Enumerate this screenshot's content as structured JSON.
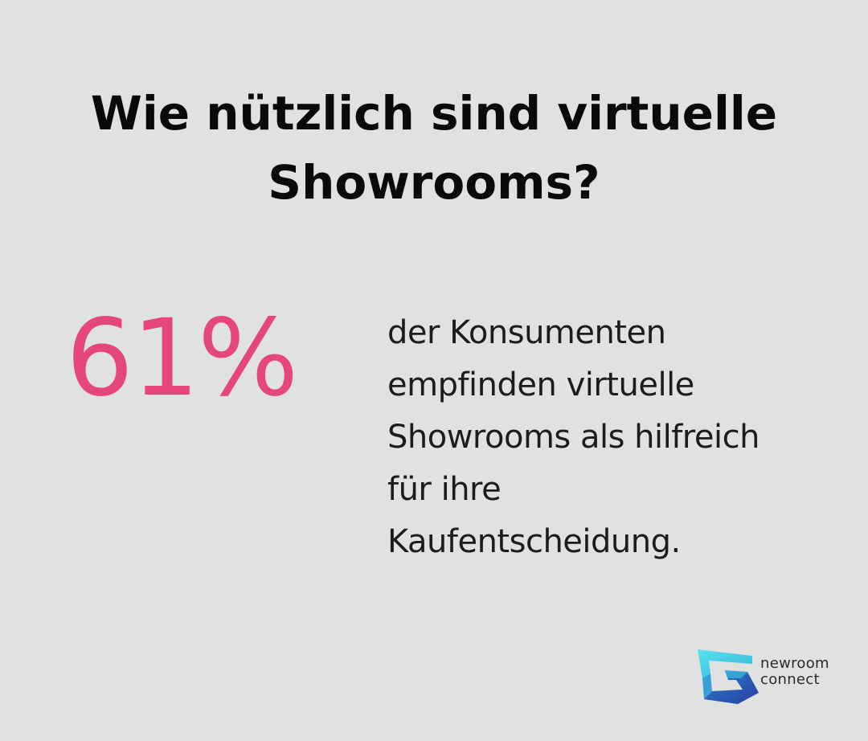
{
  "title": {
    "line1": "Wie nützlich sind virtuelle",
    "line2": "Showrooms?"
  },
  "stat": {
    "value": "61%",
    "description_lines": [
      "der Konsumenten",
      "empfinden virtuelle",
      "Showrooms als hilfreich",
      "für ihre",
      "Kaufentscheidung."
    ]
  },
  "logo": {
    "name_line1": "newroom",
    "name_line2": "connect"
  },
  "colors": {
    "background": "#e0e2e1",
    "accent": "#e5477a",
    "logo_cyan": "#3ed6e6",
    "logo_blue": "#2b4fb8"
  }
}
